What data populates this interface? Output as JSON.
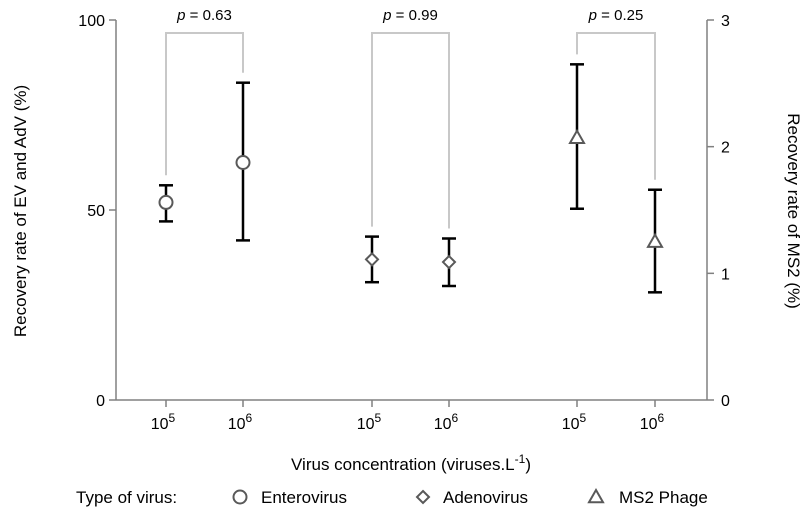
{
  "chart_data": {
    "type": "scatter",
    "xlabel": "Virus concentration (viruses.L",
    "xlabel_sup": "-1",
    "xlabel_close": ")",
    "ylabel_left": "Recovery rate of EV and AdV (%)",
    "ylabel_right": "Recovery rate of MS2 (%)",
    "ylim_left": [
      0,
      100
    ],
    "ylim_right": [
      0,
      3
    ],
    "yticks_left": [
      "0",
      "50",
      "100"
    ],
    "yticks_right": [
      "0",
      "1",
      "2",
      "3"
    ],
    "tick_base": "10",
    "legend_title": "Type of virus:",
    "legend_position": "bottom",
    "grid": false,
    "colors": {
      "marker": "#595959",
      "errorbar": "#000000",
      "bracket": "#c8c8c8",
      "axis": "#808080"
    },
    "groups": [
      {
        "p_value": "0.63",
        "points": [
          {
            "series": "Enterovirus",
            "marker": "circle",
            "axis": "left",
            "exponent": "5",
            "y": 52,
            "y_low": 47,
            "y_high": 56.5
          },
          {
            "series": "Enterovirus",
            "marker": "circle",
            "axis": "left",
            "exponent": "6",
            "y": 62.5,
            "y_low": 42,
            "y_high": 83.5
          }
        ]
      },
      {
        "p_value": "0.99",
        "points": [
          {
            "series": "Adenovirus",
            "marker": "diamond",
            "axis": "left",
            "exponent": "5",
            "y": 37,
            "y_low": 31,
            "y_high": 43
          },
          {
            "series": "Adenovirus",
            "marker": "diamond",
            "axis": "left",
            "exponent": "6",
            "y": 36.3,
            "y_low": 30,
            "y_high": 42.5
          }
        ]
      },
      {
        "p_value": "0.25",
        "points": [
          {
            "series": "MS2 Phage",
            "marker": "triangle",
            "axis": "right",
            "exponent": "5",
            "y": 2.07,
            "y_low": 1.51,
            "y_high": 2.65
          },
          {
            "series": "MS2 Phage",
            "marker": "triangle",
            "axis": "right",
            "exponent": "6",
            "y": 1.25,
            "y_low": 0.85,
            "y_high": 1.66
          }
        ]
      }
    ],
    "legend": [
      {
        "label": "Enterovirus",
        "marker": "circle"
      },
      {
        "label": "Adenovirus",
        "marker": "diamond"
      },
      {
        "label": "MS2 Phage",
        "marker": "triangle"
      }
    ]
  }
}
